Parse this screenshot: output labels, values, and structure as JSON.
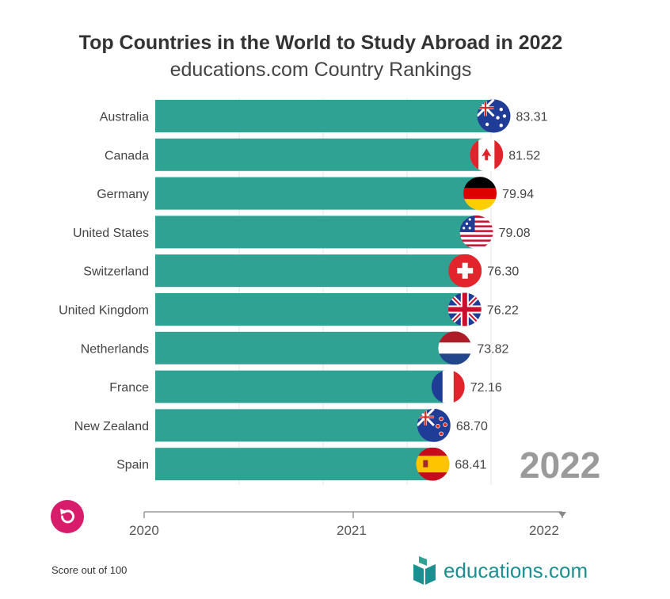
{
  "header": {
    "title": "Top Countries in the World to Study Abroad in 2022",
    "subtitle": "educations.com Country Rankings"
  },
  "chart_data": {
    "type": "bar",
    "orientation": "horizontal",
    "title": "Top Countries in the World to Study Abroad in 2022",
    "subtitle": "educations.com Country Rankings",
    "categories": [
      "Australia",
      "Canada",
      "Germany",
      "United States",
      "Switzerland",
      "United Kingdom",
      "Netherlands",
      "France",
      "New Zealand",
      "Spain"
    ],
    "values": [
      83.31,
      81.52,
      79.94,
      79.08,
      76.3,
      76.22,
      73.82,
      72.16,
      68.7,
      68.41
    ],
    "value_labels": [
      "83.31",
      "81.52",
      "79.94",
      "79.08",
      "76.30",
      "76.22",
      "73.82",
      "72.16",
      "68.70",
      "68.41"
    ],
    "flags": [
      "australia-flag",
      "canada-flag",
      "germany-flag",
      "usa-flag",
      "switzerland-flag",
      "uk-flag",
      "netherlands-flag",
      "france-flag",
      "new-zealand-flag",
      "spain-flag"
    ],
    "xlim": [
      0,
      100
    ],
    "grid": true,
    "bar_color": "#2fa294",
    "current_year": "2022"
  },
  "timeline": {
    "labels": [
      "2020",
      "2021",
      "2022"
    ],
    "progress": 1.0
  },
  "controls": {
    "replay_icon": "replay-icon",
    "replay_color": "#d81b6a"
  },
  "footer": {
    "note": "Score out of 100",
    "logo_text": "educations.com",
    "logo_color": "#1c8f91"
  }
}
